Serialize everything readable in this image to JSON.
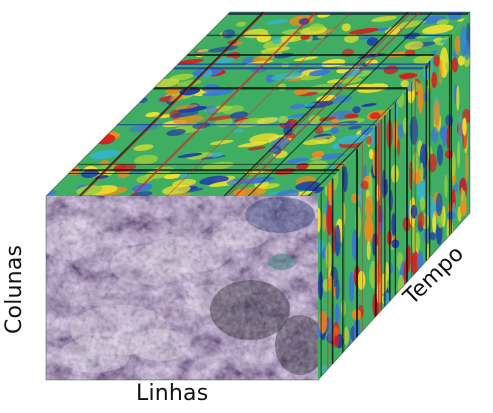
{
  "labels": {
    "lines": "Linhas",
    "columns": "Colunas",
    "time": "Tempo"
  },
  "colors": {
    "background": "#ffffff",
    "spectral_base": "#3fae62",
    "spectral_ramp": [
      "#1f3fa8",
      "#3a78d6",
      "#37b3c5",
      "#3fae62",
      "#9ccf3f",
      "#f2e22b",
      "#f08a1c",
      "#d61f1f"
    ]
  }
}
